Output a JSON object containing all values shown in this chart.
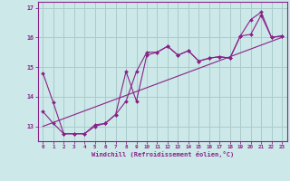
{
  "xlabel": "Windchill (Refroidissement éolien,°C)",
  "xlim": [
    -0.5,
    23.5
  ],
  "ylim": [
    12.5,
    17.2
  ],
  "xtick_values": [
    0,
    1,
    2,
    3,
    4,
    5,
    6,
    7,
    8,
    9,
    10,
    11,
    12,
    13,
    14,
    15,
    16,
    17,
    18,
    19,
    20,
    21,
    22,
    23
  ],
  "xtick_labels": [
    "0",
    "1",
    "2",
    "3",
    "4",
    "5",
    "6",
    "7",
    "8",
    "9",
    "10",
    "11",
    "12",
    "13",
    "14",
    "15",
    "16",
    "17",
    "18",
    "19",
    "20",
    "21",
    "22",
    "23"
  ],
  "ytick_values": [
    13,
    14,
    15,
    16,
    17
  ],
  "background_color": "#cce8e8",
  "line_color": "#882288",
  "grid_color": "#aacccc",
  "line1_x": [
    0,
    1,
    2,
    3,
    4,
    5,
    6,
    7,
    8,
    9,
    10,
    11,
    12,
    13,
    14,
    15,
    16,
    17,
    18,
    19,
    20,
    21,
    22,
    23
  ],
  "line1_y": [
    14.8,
    13.8,
    12.75,
    12.75,
    12.75,
    13.05,
    13.1,
    13.4,
    13.85,
    14.85,
    15.5,
    15.5,
    15.7,
    15.4,
    15.55,
    15.2,
    15.3,
    15.35,
    15.3,
    16.05,
    16.6,
    16.85,
    16.0,
    16.05
  ],
  "line2_x": [
    0,
    1,
    2,
    3,
    4,
    5,
    6,
    7,
    8,
    9,
    10,
    11,
    12,
    13,
    14,
    15,
    16,
    17,
    18,
    19,
    20,
    21,
    22,
    23
  ],
  "line2_y": [
    13.5,
    13.1,
    12.75,
    12.75,
    12.75,
    13.0,
    13.1,
    13.4,
    14.85,
    13.85,
    15.4,
    15.5,
    15.7,
    15.4,
    15.55,
    15.2,
    15.3,
    15.35,
    15.3,
    16.05,
    16.1,
    16.75,
    16.0,
    16.05
  ],
  "line3_x": [
    0,
    23
  ],
  "line3_y": [
    13.0,
    16.0
  ]
}
